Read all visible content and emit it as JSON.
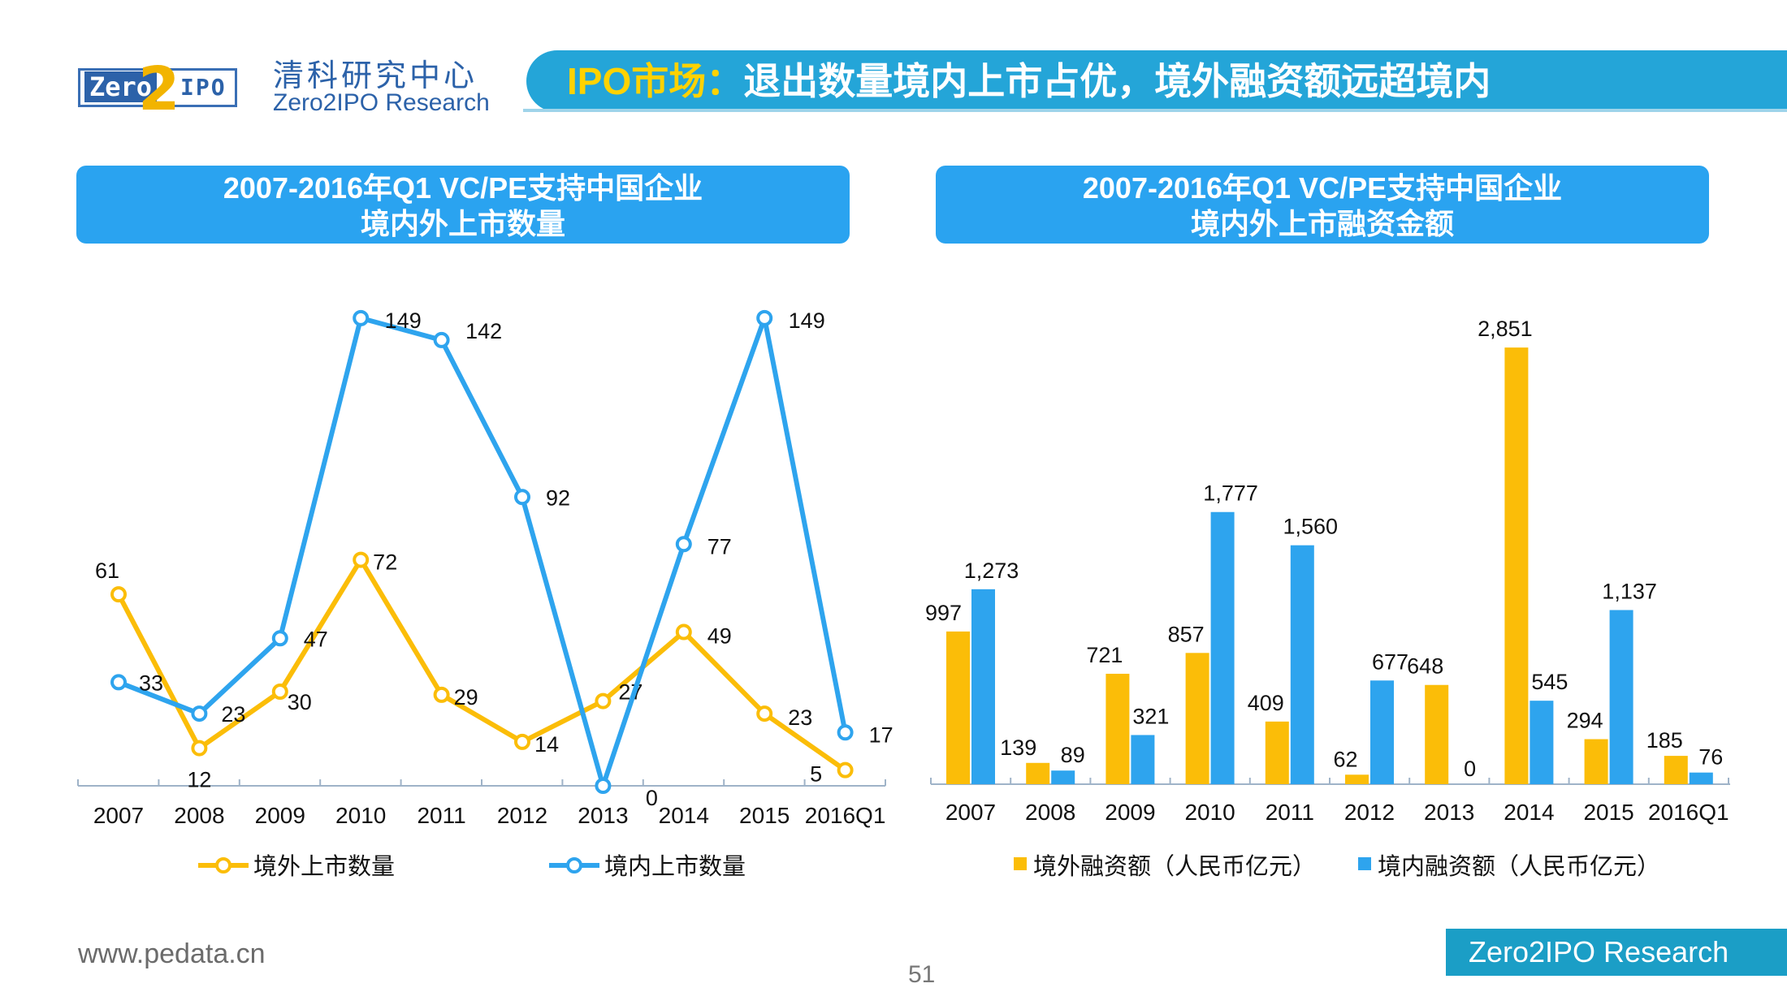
{
  "header": {
    "logo_zero": "Zero",
    "logo_two": "2",
    "logo_ipo": "IPO",
    "brand_cn": "清科研究中心",
    "brand_en": "Zero2IPO Research",
    "title_highlight": "IPO市场：",
    "title_rest": "退出数量境内上市占优，境外融资额远超境内"
  },
  "left_panel": {
    "title_line1": "2007-2016年Q1 VC/PE支持中国企业",
    "title_line2": "境内外上市数量"
  },
  "right_panel": {
    "title_line1": "2007-2016年Q1 VC/PE支持中国企业",
    "title_line2": "境内外上市融资金额"
  },
  "footer": {
    "website": "www.pedata.cn",
    "page_number": "51",
    "brand": "Zero2IPO Research"
  },
  "colors": {
    "title_bar": "#24a5d8",
    "panel": "#2aa3f0",
    "yellow": "#fbbd08",
    "blue": "#2ea4ee",
    "footer": "#1b9ec6"
  },
  "chart_data": [
    {
      "type": "line",
      "title": "2007-2016年Q1 VC/PE支持中国企业境内外上市数量",
      "categories": [
        "2007",
        "2008",
        "2009",
        "2010",
        "2011",
        "2012",
        "2013",
        "2014",
        "2015",
        "2016Q1"
      ],
      "ylim": [
        0,
        150
      ],
      "series": [
        {
          "name": "境外上市数量",
          "color": "#fbbd08",
          "values": [
            61,
            12,
            30,
            72,
            29,
            14,
            27,
            49,
            23,
            5
          ],
          "labels": [
            "61",
            "12",
            "30",
            "72",
            "29",
            "14",
            "27",
            "49",
            "23",
            "5"
          ]
        },
        {
          "name": "境内上市数量",
          "color": "#2ea4ee",
          "values": [
            33,
            23,
            47,
            149,
            142,
            92,
            0,
            77,
            149,
            17
          ],
          "labels": [
            "33",
            "23",
            "47",
            "149",
            "142",
            "92",
            "0",
            "77",
            "149",
            "17"
          ]
        }
      ]
    },
    {
      "type": "bar",
      "title": "2007-2016年Q1 VC/PE支持中国企业境内外上市融资金额",
      "categories": [
        "2007",
        "2008",
        "2009",
        "2010",
        "2011",
        "2012",
        "2013",
        "2014",
        "2015",
        "2016Q1"
      ],
      "ylim": [
        0,
        3000
      ],
      "series": [
        {
          "name": "境外融资额（人民币亿元）",
          "color": "#fbbd08",
          "values": [
            997,
            139,
            721,
            857,
            409,
            62,
            648,
            2851,
            294,
            185
          ],
          "labels": [
            "997",
            "139",
            "721",
            "857",
            "409",
            "62",
            "648",
            "2,851",
            "294",
            "185"
          ]
        },
        {
          "name": "境内融资额（人民币亿元）",
          "color": "#2ea4ee",
          "values": [
            1273,
            89,
            321,
            1777,
            1560,
            677,
            0,
            545,
            1137,
            76
          ],
          "labels": [
            "1,273",
            "89",
            "321",
            "1,777",
            "1,560",
            "677",
            "0",
            "545",
            "1,137",
            "76"
          ]
        }
      ]
    }
  ]
}
